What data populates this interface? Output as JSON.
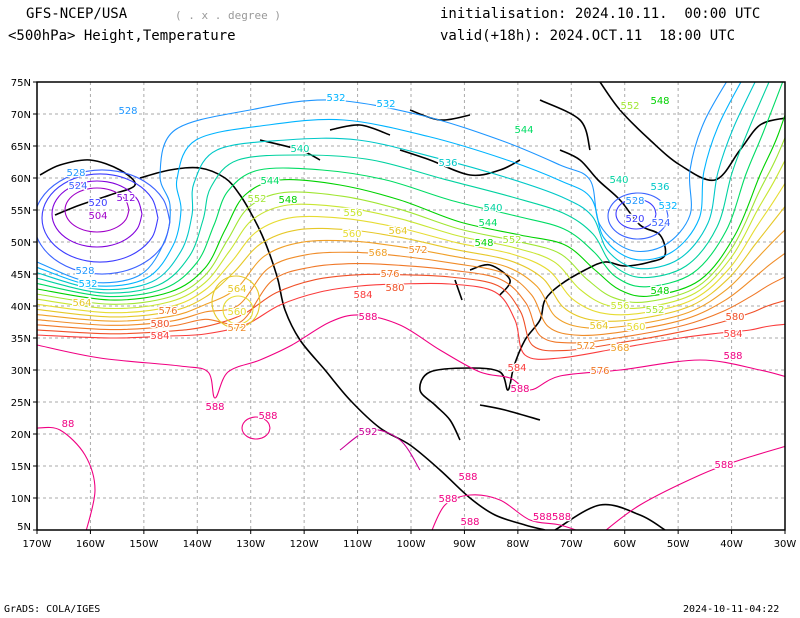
{
  "header": {
    "model": "GFS-NCEP/USA",
    "resolution": "( . x . degree )",
    "field": "<500hPa> Height,Temperature",
    "init": "initialisation: 2024.10.11.  00:00 UTC",
    "valid": "valid(+18h): 2024.OCT.11  18:00 UTC"
  },
  "footer": {
    "credit": "GrADS: COLA/IGES",
    "timestamp": "2024-10-11-04:22"
  },
  "axes": {
    "lat_labels": [
      "75N",
      "70N",
      "65N",
      "60N",
      "55N",
      "50N",
      "45N",
      "40N",
      "35N",
      "30N",
      "25N",
      "20N",
      "15N",
      "10N",
      "5N"
    ],
    "lon_labels": [
      "170W",
      "160W",
      "150W",
      "140W",
      "130W",
      "120W",
      "110W",
      "100W",
      "90W",
      "80W",
      "70W",
      "60W",
      "50W",
      "40W",
      "30W"
    ]
  },
  "map": {
    "lon_range": [
      -170,
      -30
    ],
    "lat_range": [
      5,
      75
    ],
    "contour_interval": 4,
    "contour_labels": [
      "528",
      "532",
      "532",
      "536",
      "540",
      "544",
      "548",
      "552",
      "544",
      "540",
      "544",
      "548",
      "552",
      "556",
      "560",
      "564",
      "568",
      "572",
      "576",
      "580",
      "584",
      "588",
      "528",
      "524",
      "520",
      "512",
      "504",
      "528",
      "532",
      "564",
      "576",
      "580",
      "584",
      "564",
      "560",
      "572",
      "588",
      "588",
      "592",
      "88",
      "584",
      "588",
      "540",
      "536",
      "532",
      "528",
      "524",
      "520",
      "548",
      "552",
      "556",
      "560",
      "564",
      "568",
      "572",
      "576",
      "580",
      "584",
      "588",
      "588",
      "552",
      "548",
      "588",
      "588",
      "588",
      "588588"
    ],
    "colors": {
      "504": "#a000c8",
      "508": "#9100d2",
      "512": "#8200dc",
      "516": "#5a28f0",
      "520": "#3c3cff",
      "524": "#3c64ff",
      "528": "#1e96ff",
      "532": "#00b4ff",
      "536": "#00c8c8",
      "540": "#00d2a0",
      "544": "#00dc64",
      "548": "#00d200",
      "552": "#a0e632",
      "556": "#c8e632",
      "560": "#e6dc32",
      "564": "#e6c828",
      "568": "#f0a028",
      "572": "#f08c28",
      "576": "#f07828",
      "580": "#f05028",
      "584": "#fa3c3c",
      "588": "#f00082",
      "592": "#c80096"
    }
  }
}
